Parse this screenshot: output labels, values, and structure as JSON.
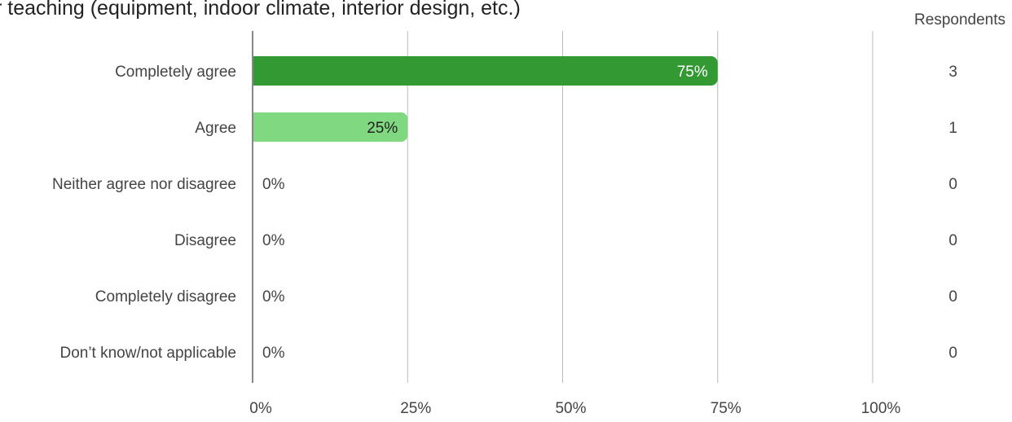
{
  "title": "r teaching (equipment, indoor climate, interior design, etc.)",
  "respondents_header": "Respondents",
  "colors": {
    "bar_primary": "#339933",
    "bar_secondary": "#80d880",
    "grid": "#bbbbbb",
    "axis": "#888888",
    "label": "#444444",
    "bar_label_light": "#ffffff",
    "bar_label_dark": "#222222"
  },
  "chart_data": {
    "type": "bar",
    "orientation": "horizontal",
    "categories": [
      "Completely agree",
      "Agree",
      "Neither agree nor disagree",
      "Disagree",
      "Completely disagree",
      "Don’t know/not applicable"
    ],
    "values": [
      75,
      25,
      0,
      0,
      0,
      0
    ],
    "value_labels": [
      "75%",
      "25%",
      "0%",
      "0%",
      "0%",
      "0%"
    ],
    "respondents": [
      3,
      1,
      0,
      0,
      0,
      0
    ],
    "xlim": [
      0,
      100
    ],
    "xticks": [
      0,
      25,
      50,
      75,
      100
    ],
    "xtick_labels": [
      "0%",
      "25%",
      "50%",
      "75%",
      "100%"
    ],
    "grid": true
  }
}
